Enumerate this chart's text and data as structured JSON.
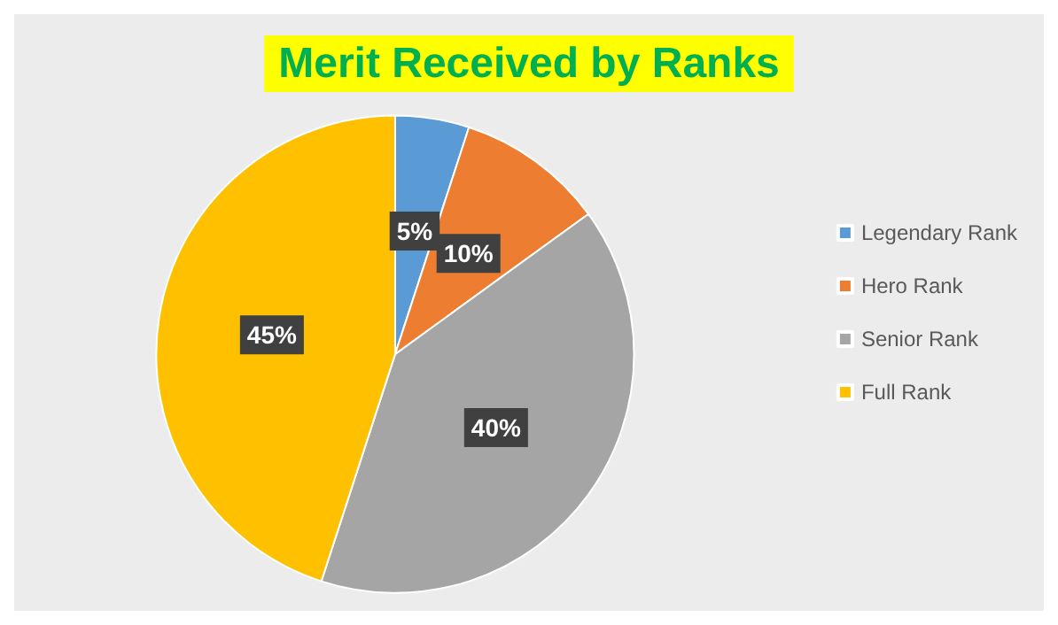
{
  "chart_data": {
    "type": "pie",
    "title": "Merit Received by Ranks",
    "categories": [
      "Legendary Rank",
      "Hero Rank",
      "Senior Rank",
      "Full Rank"
    ],
    "values": [
      5,
      10,
      40,
      45
    ],
    "colors": [
      "#5b9bd5",
      "#ed7d31",
      "#a5a5a5",
      "#ffc000"
    ],
    "value_labels": [
      "5%",
      "10%",
      "40%",
      "45%"
    ],
    "legend": "right"
  }
}
